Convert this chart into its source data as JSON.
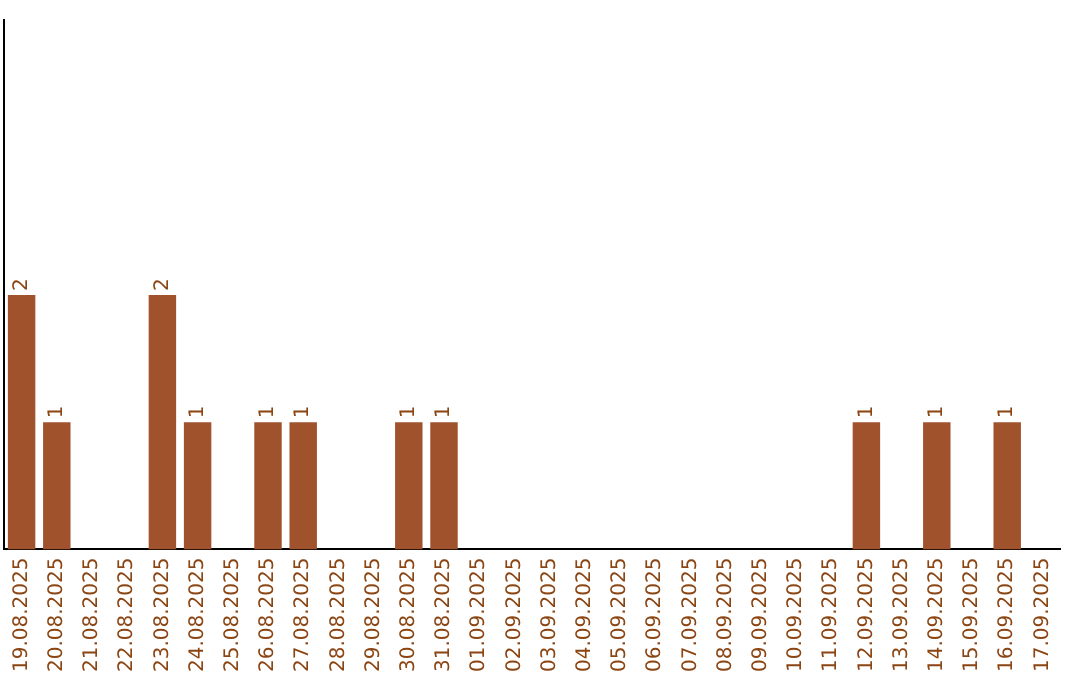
{
  "chart_data": {
    "type": "bar",
    "categories": [
      "19.08.2025",
      "20.08.2025",
      "21.08.2025",
      "22.08.2025",
      "23.08.2025",
      "24.08.2025",
      "25.08.2025",
      "26.08.2025",
      "27.08.2025",
      "28.08.2025",
      "29.08.2025",
      "30.08.2025",
      "31.08.2025",
      "01.09.2025",
      "02.09.2025",
      "03.09.2025",
      "04.09.2025",
      "05.09.2025",
      "06.09.2025",
      "07.09.2025",
      "08.09.2025",
      "09.09.2025",
      "10.09.2025",
      "11.09.2025",
      "12.09.2025",
      "13.09.2025",
      "14.09.2025",
      "15.09.2025",
      "16.09.2025",
      "17.09.2025"
    ],
    "values": [
      2,
      1,
      0,
      0,
      2,
      1,
      0,
      1,
      1,
      0,
      0,
      1,
      1,
      0,
      0,
      0,
      0,
      0,
      0,
      0,
      0,
      0,
      0,
      0,
      1,
      0,
      1,
      0,
      1,
      0
    ],
    "value_labels": [
      "2",
      "1",
      null,
      null,
      "2",
      "1",
      null,
      "1",
      "1",
      null,
      null,
      "1",
      "1",
      null,
      null,
      null,
      null,
      null,
      null,
      null,
      null,
      null,
      null,
      null,
      "1",
      null,
      "1",
      null,
      "1",
      null
    ],
    "color": "#a0522d",
    "ylim": [
      0,
      4.16
    ],
    "grid": false,
    "legend": false,
    "tick_labels": "x"
  }
}
